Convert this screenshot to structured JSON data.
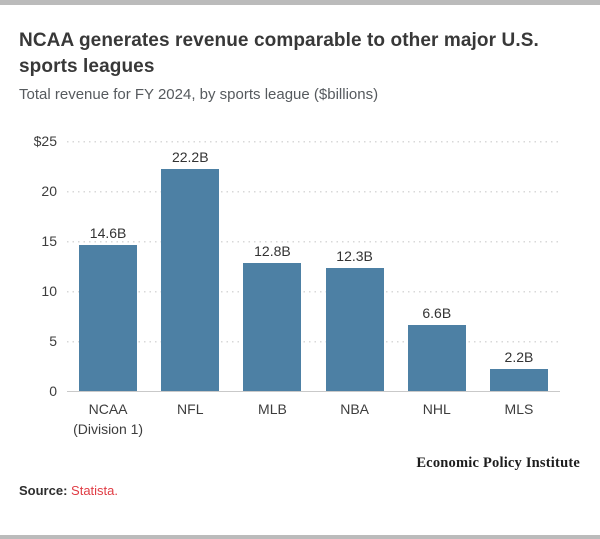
{
  "page": {
    "top_strip_color": "#bbbbbb",
    "bottom_strip_color": "#bbbbbb",
    "background": "#ffffff"
  },
  "header": {
    "title": "NCAA generates revenue comparable to other major U.S. sports leagues",
    "subtitle": "Total revenue for FY 2024, by sports league ($billions)"
  },
  "chart_data": {
    "type": "bar",
    "title": "NCAA generates revenue comparable to other major U.S. sports leagues",
    "subtitle": "Total revenue for FY 2024, by sports league ($billions)",
    "categories": [
      "NCAA\n(Division 1)",
      "NFL",
      "MLB",
      "NBA",
      "NHL",
      "MLS"
    ],
    "values": [
      14.6,
      22.2,
      12.8,
      12.3,
      6.6,
      2.2
    ],
    "value_labels": [
      "14.6B",
      "22.2B",
      "12.8B",
      "12.3B",
      "6.6B",
      "2.2B"
    ],
    "xlabel": "",
    "ylabel": "",
    "ylim": [
      0,
      25
    ],
    "yticks": [
      {
        "value": 25,
        "label": "$25"
      },
      {
        "value": 20,
        "label": "20"
      },
      {
        "value": 15,
        "label": "15"
      },
      {
        "value": 10,
        "label": "10"
      },
      {
        "value": 5,
        "label": "5"
      },
      {
        "value": 0,
        "label": "0"
      }
    ],
    "grid": "horizontal-dotted",
    "legend": "none",
    "bar_color": "#4d80a4"
  },
  "footer": {
    "credit": "Economic Policy Institute",
    "source_label": "Source:",
    "source_link_text": "Statista.",
    "source_link_color": "#e03c44"
  }
}
